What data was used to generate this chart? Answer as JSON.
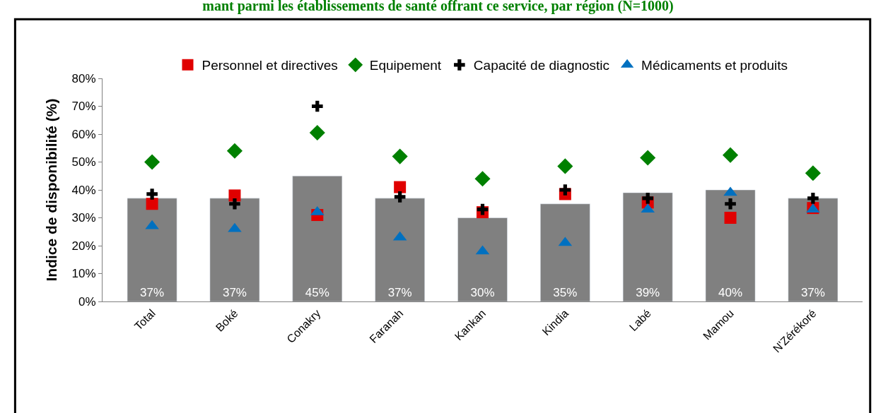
{
  "chart_data": {
    "type": "bar",
    "title": "mant parmi les établissements de santé offrant ce service, par région (N=1000)",
    "ylabel": "Indice de disponibilité (%)",
    "categories": [
      "Total",
      "Boké",
      "Conakry",
      "Faranah",
      "Kankan",
      "Kindia",
      "Labé",
      "Mamou",
      "N'Zérékoré"
    ],
    "values": [
      37,
      37,
      45,
      37,
      30,
      35,
      39,
      40,
      37
    ],
    "color": "#808080",
    "value_labels": [
      "37%",
      "37%",
      "45%",
      "37%",
      "30%",
      "35%",
      "39%",
      "40%",
      "37%"
    ],
    "series": [
      {
        "name": "Personnel et directives",
        "type": "scatter",
        "marker": "square",
        "color": "#e00000",
        "values": [
          35,
          38,
          31,
          41,
          32,
          38.5,
          35.5,
          30,
          33.5
        ]
      },
      {
        "name": "Equipement",
        "type": "scatter",
        "marker": "diamond",
        "color": "#008000",
        "values": [
          50,
          54,
          60.5,
          52,
          44,
          48.5,
          51.5,
          52.5,
          46
        ]
      },
      {
        "name": "Capacité de diagnostic",
        "type": "scatter",
        "marker": "cross",
        "color": "#000000",
        "values": [
          38.5,
          35,
          70,
          37.5,
          33,
          40,
          37,
          35,
          37
        ]
      },
      {
        "name": "Médicaments et produits",
        "type": "scatter",
        "marker": "triangle",
        "color": "#0070c0",
        "values": [
          27,
          26,
          32,
          23,
          18,
          21,
          33,
          39,
          33
        ]
      }
    ],
    "ylim": [
      0,
      80
    ],
    "yticks": [
      {
        "value": 0,
        "label": "0%"
      },
      {
        "value": 10,
        "label": "10%"
      },
      {
        "value": 20,
        "label": "20%"
      },
      {
        "value": 30,
        "label": "30%"
      },
      {
        "value": 40,
        "label": "40%"
      },
      {
        "value": 50,
        "label": "50%"
      },
      {
        "value": 60,
        "label": "60%"
      },
      {
        "value": 70,
        "label": "70%"
      },
      {
        "value": 80,
        "label": "80%"
      }
    ],
    "legend": "top"
  }
}
